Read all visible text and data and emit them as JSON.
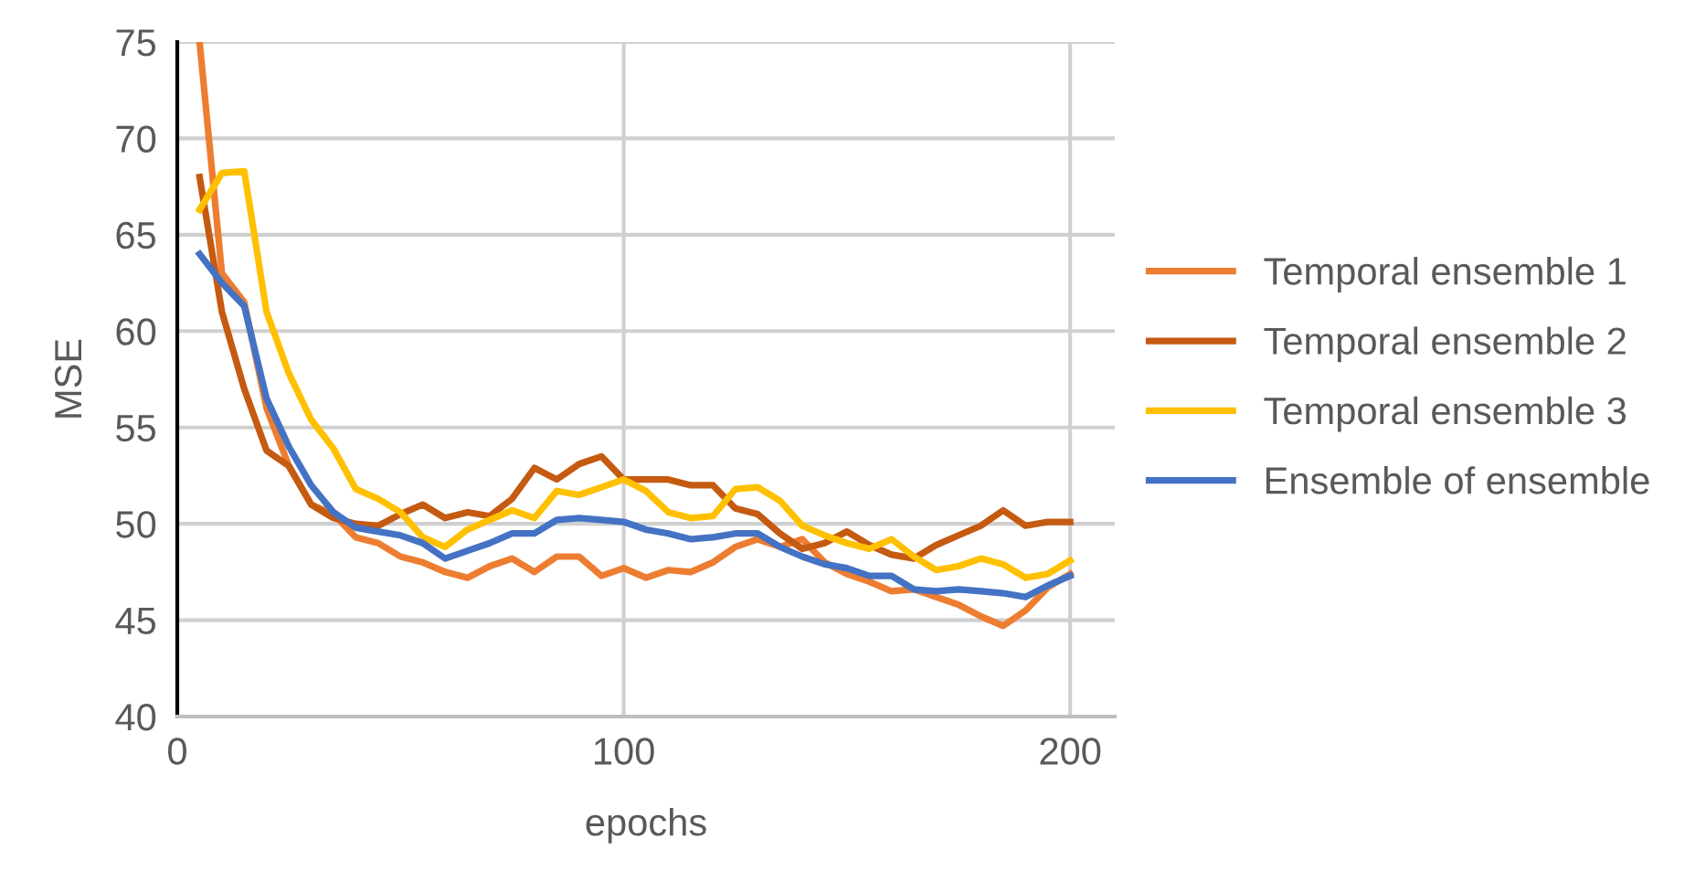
{
  "chart_data": {
    "type": "line",
    "xlabel": "epochs",
    "ylabel": "MSE",
    "x": [
      5,
      10,
      15,
      20,
      25,
      30,
      35,
      40,
      45,
      50,
      55,
      60,
      65,
      70,
      75,
      80,
      85,
      90,
      95,
      100,
      105,
      110,
      115,
      120,
      125,
      130,
      135,
      140,
      145,
      150,
      155,
      160,
      165,
      170,
      175,
      180,
      185,
      190,
      195,
      200
    ],
    "series": [
      {
        "name": "Temporal ensemble 1",
        "color": "#ed7d31",
        "values": [
          75,
          63,
          61.5,
          56,
          53,
          51,
          50.5,
          49.3,
          49,
          48.3,
          48,
          47.5,
          47.2,
          47.8,
          48.2,
          47.5,
          48.3,
          48.3,
          47.3,
          47.7,
          47.2,
          47.6,
          47.5,
          48,
          48.8,
          49.2,
          48.8,
          49.2,
          48,
          47.4,
          47,
          46.5,
          46.6,
          46.2,
          45.8,
          45.2,
          44.7,
          45.5,
          46.7,
          47.4
        ]
      },
      {
        "name": "Temporal ensemble 2",
        "color": "#c55a11",
        "values": [
          68,
          61,
          57,
          53.8,
          53,
          51,
          50.3,
          50,
          49.9,
          50.5,
          51,
          50.3,
          50.6,
          50.4,
          51.3,
          52.9,
          52.3,
          53.1,
          53.5,
          52.3,
          52.3,
          52.3,
          52,
          52,
          50.8,
          50.5,
          49.5,
          48.7,
          49,
          49.6,
          48.9,
          48.4,
          48.2,
          48.9,
          49.4,
          49.9,
          50.7,
          49.9,
          50.1,
          50.1
        ]
      },
      {
        "name": "Temporal ensemble 3",
        "color": "#ffc000",
        "values": [
          66.3,
          68.2,
          68.3,
          61,
          57.8,
          55.4,
          53.9,
          51.8,
          51.3,
          50.6,
          49.3,
          48.8,
          49.7,
          50.2,
          50.7,
          50.3,
          51.7,
          51.5,
          51.9,
          52.3,
          51.7,
          50.6,
          50.3,
          50.4,
          51.8,
          51.9,
          51.2,
          49.9,
          49.4,
          49,
          48.7,
          49.2,
          48.3,
          47.6,
          47.8,
          48.2,
          47.9,
          47.2,
          47.4,
          48.1
        ]
      },
      {
        "name": "Ensemble of ensemble",
        "color": "#4472c4",
        "values": [
          64,
          62.5,
          61.3,
          56.5,
          54,
          52,
          50.6,
          49.8,
          49.6,
          49.4,
          49,
          48.2,
          48.6,
          49,
          49.5,
          49.5,
          50.2,
          50.3,
          50.2,
          50.1,
          49.7,
          49.5,
          49.2,
          49.3,
          49.5,
          49.5,
          48.8,
          48.3,
          47.9,
          47.7,
          47.3,
          47.3,
          46.6,
          46.5,
          46.6,
          46.5,
          46.4,
          46.2,
          46.8,
          47.3
        ]
      }
    ],
    "xlim": [
      0,
      210
    ],
    "xticks": [
      0,
      100,
      200
    ],
    "ylim": [
      40,
      75
    ],
    "yticks": [
      40,
      45,
      50,
      55,
      60,
      65,
      70,
      75
    ],
    "grid": true,
    "legend": "right",
    "marker": "none",
    "line_style": "solid"
  }
}
